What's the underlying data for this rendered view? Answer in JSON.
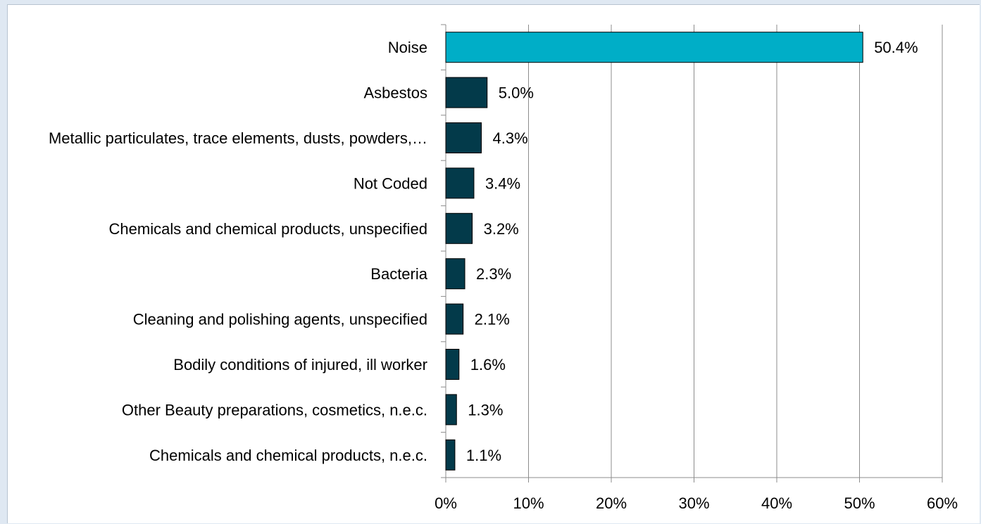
{
  "chart_data": {
    "type": "bar",
    "orientation": "horizontal",
    "categories": [
      "Noise",
      "Asbestos",
      "Metallic particulates, trace elements, dusts, powders,…",
      "Not Coded",
      "Chemicals and chemical products, unspecified",
      "Bacteria",
      "Cleaning and polishing agents, unspecified",
      "Bodily conditions of injured, ill worker",
      "Other Beauty preparations, cosmetics, n.e.c.",
      "Chemicals and chemical products, n.e.c."
    ],
    "values": [
      50.4,
      5.0,
      4.3,
      3.4,
      3.2,
      2.3,
      2.1,
      1.6,
      1.3,
      1.1
    ],
    "value_labels": [
      "50.4%",
      "5.0%",
      "4.3%",
      "3.4%",
      "3.2%",
      "2.3%",
      "2.1%",
      "1.6%",
      "1.3%",
      "1.1%"
    ],
    "xlim": [
      0,
      60
    ],
    "x_ticks": [
      "0%",
      "10%",
      "20%",
      "30%",
      "40%",
      "50%",
      "60%"
    ],
    "x_tick_values": [
      0,
      10,
      20,
      30,
      40,
      50,
      60
    ],
    "grid": "vertical",
    "legend": "none",
    "colors": {
      "highlight_bar": "#00aec7",
      "default_bar": "#033a4a",
      "bar_outline": "#000000",
      "grid": "#8c8c8c",
      "axis": "#8c8c8c"
    }
  }
}
